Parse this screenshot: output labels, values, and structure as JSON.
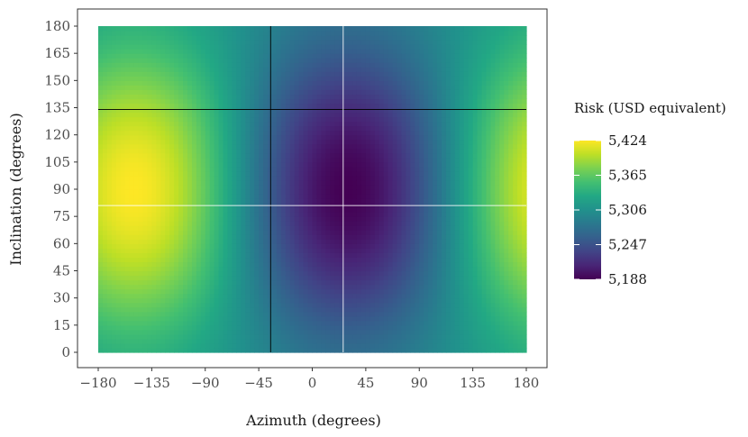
{
  "chart_data": {
    "type": "heatmap",
    "xlabel": "Azimuth (degrees)",
    "ylabel": "Inclination (degrees)",
    "xlim": [
      -180,
      180
    ],
    "ylim": [
      0,
      180
    ],
    "x_ticks": [
      -180,
      -135,
      -90,
      -45,
      0,
      45,
      90,
      135,
      180
    ],
    "x_tick_labels": [
      "−180",
      "−135",
      "−90",
      "−45",
      "0",
      "45",
      "90",
      "135",
      "180"
    ],
    "y_ticks": [
      0,
      15,
      30,
      45,
      60,
      75,
      90,
      105,
      120,
      135,
      150,
      165,
      180
    ],
    "y_tick_labels": [
      "0",
      "15",
      "30",
      "45",
      "60",
      "75",
      "90",
      "105",
      "120",
      "135",
      "150",
      "165",
      "180"
    ],
    "legend": {
      "title": "Risk (USD equivalent)",
      "placement": "right",
      "min": 5188,
      "max": 5424,
      "breaks": [
        5424,
        5365,
        5306,
        5247,
        5188
      ],
      "break_labels": [
        "5,424",
        "5,365",
        "5,306",
        "5,247",
        "5,188"
      ]
    },
    "colormap": "viridis",
    "field": {
      "max_point": {
        "azimuth": -150,
        "inclination": 95,
        "risk": 5424
      },
      "min_point": {
        "azimuth": 35,
        "inclination": 95,
        "risk": 5188
      }
    },
    "reference_lines": [
      {
        "orientation": "vertical",
        "azimuth": -35,
        "color": "#000000"
      },
      {
        "orientation": "horizontal",
        "inclination": 134,
        "color": "#000000"
      },
      {
        "orientation": "vertical",
        "azimuth": 26,
        "color": "#ffffff"
      },
      {
        "orientation": "horizontal",
        "inclination": 81,
        "color": "#ffffff"
      }
    ]
  }
}
